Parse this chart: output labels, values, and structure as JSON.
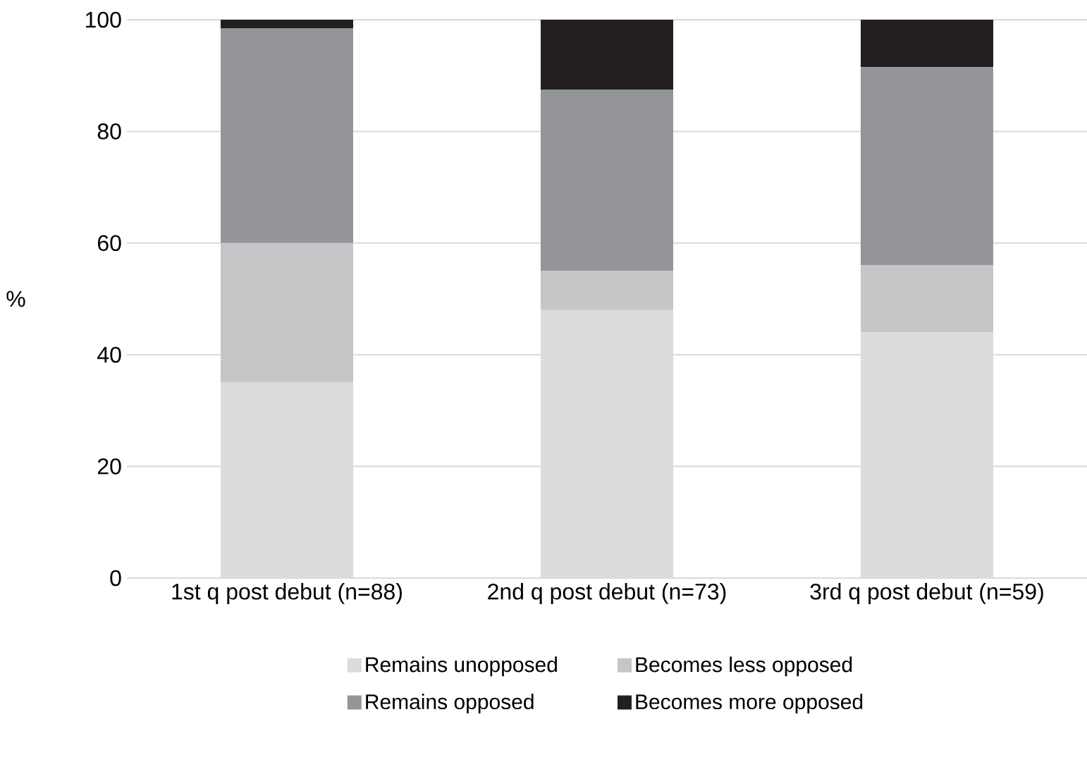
{
  "chart_data": {
    "type": "bar",
    "stacked": true,
    "ylabel": "%",
    "categories": [
      "1st q post debut (n=88)",
      "2nd q post debut (n=73)",
      "3rd q post debut (n=59)"
    ],
    "series": [
      {
        "name": "Remains unopposed",
        "color": "#dadbdc",
        "values": [
          35,
          48,
          44
        ]
      },
      {
        "name": "Becomes less opposed",
        "color": "#c5c6c8",
        "values": [
          25,
          7,
          12
        ]
      },
      {
        "name": "Remains opposed",
        "color": "#939598",
        "values": [
          38.5,
          32.5,
          35.5
        ]
      },
      {
        "name": "Becomes more opposed",
        "color": "#231f20",
        "values": [
          1.5,
          12.5,
          8.5
        ]
      }
    ],
    "ylim": [
      0,
      100
    ],
    "yticks": [
      0,
      20,
      40,
      60,
      80,
      100
    ],
    "grid": "y",
    "legend": "bottom"
  }
}
